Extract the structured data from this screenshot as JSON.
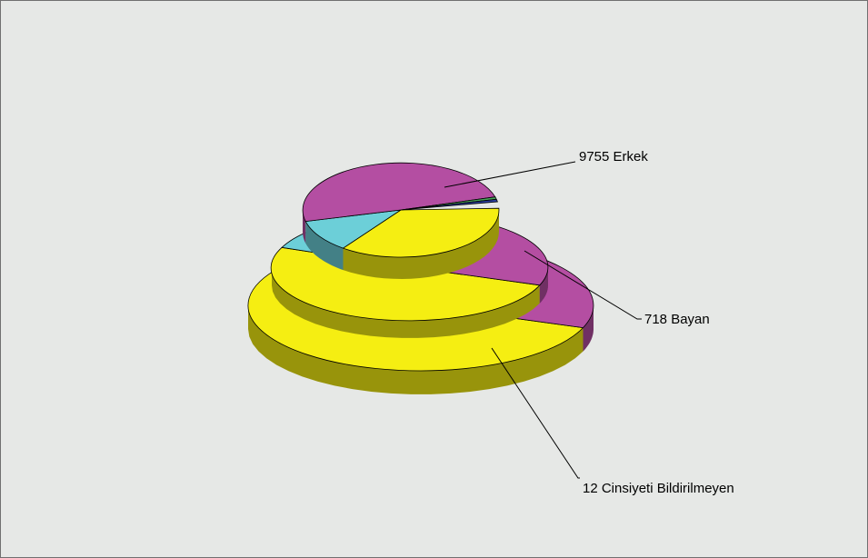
{
  "chart_data": {
    "type": "pie",
    "title": "",
    "legend": "none",
    "categories": [
      "Erkek",
      "Bayan",
      "Cinsiyeti Bildirilmeyen"
    ],
    "series": [
      {
        "values": [
          9755,
          718,
          12
        ]
      },
      {
        "values": [
          9755,
          718,
          12
        ]
      },
      {
        "values": [
          9755,
          718,
          12
        ]
      }
    ],
    "data_labels": [
      {
        "value": 9755,
        "text": "9755 Erkek"
      },
      {
        "value": 718,
        "text": "718 Bayan"
      },
      {
        "value": 12,
        "text": "12 Cinsiyeti Bildirilmeyen"
      }
    ],
    "colors": {
      "tier_palette": [
        [
          "#f5ee12",
          "#6ccfd8",
          "#b44ea2",
          "#49a55a",
          "#2c3ea0"
        ],
        [
          "#f5ee12",
          "#6ccfd8",
          "#b44ea2"
        ],
        [
          "#f5ee12",
          "#6ccfd8",
          "#b44ea2"
        ]
      ],
      "background": "#e6e8e6"
    }
  }
}
